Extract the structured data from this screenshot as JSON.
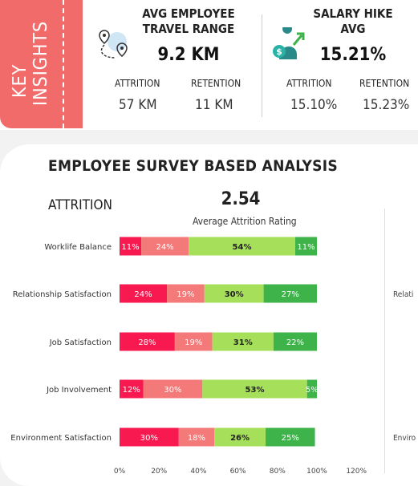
{
  "key_insights": {
    "label_line1": "KEY",
    "label_line2": "INSIGHTS"
  },
  "travel": {
    "title_line1": "AVG EMPLOYEE",
    "title_line2": "TRAVEL RANGE",
    "value": "9.2 KM",
    "attrition_label": "ATTRITION",
    "attrition_value": "57 KM",
    "retention_label": "RETENTION",
    "retention_value": "11 KM",
    "icon": "route-pin-icon"
  },
  "salary": {
    "title_line1": "SALARY HIKE",
    "title_line2": "AVG",
    "value": "15.21%",
    "attrition_label": "ATTRITION",
    "attrition_value": "15.10%",
    "retention_label": "RETENTION",
    "retention_value": "15.23%",
    "icon": "money-growth-icon"
  },
  "survey": {
    "title": "EMPLOYEE SURVEY BASED ANALYSIS",
    "section": "ATTRITION",
    "avg_value": "2.54",
    "avg_label": "Average Attrition Rating",
    "clipped_labels": [
      "Relati",
      "Enviro"
    ]
  },
  "chart_data": {
    "type": "bar",
    "orientation": "horizontal",
    "stacked": true,
    "categories": [
      "Worklife Balance",
      "Relationship Satisfaction",
      "Job Satisfaction",
      "Job Involvement",
      "Environment Satisfaction"
    ],
    "series": [
      {
        "values": [
          11,
          24,
          28,
          12,
          30
        ],
        "labels": [
          "11%",
          "24%",
          "28%",
          "12%",
          "30%"
        ],
        "color": "#f7194f"
      },
      {
        "values": [
          24,
          19,
          19,
          30,
          18
        ],
        "labels": [
          "24%",
          "19%",
          "19%",
          "30%",
          "18%"
        ],
        "color": "#f47a7a"
      },
      {
        "values": [
          54,
          30,
          31,
          53,
          26
        ],
        "labels": [
          "54%",
          "30%",
          "31%",
          "53%",
          "26%"
        ],
        "color": "#a6e05a"
      },
      {
        "values": [
          11,
          27,
          22,
          5,
          25
        ],
        "labels": [
          "11%",
          "27%",
          "22%",
          "5%",
          "25%"
        ],
        "color": "#3db34a"
      }
    ],
    "xlim": [
      0,
      120
    ],
    "xticks": [
      "0%",
      "20%",
      "40%",
      "60%",
      "80%",
      "100%",
      "120%"
    ],
    "grid": false,
    "legend": "none"
  }
}
